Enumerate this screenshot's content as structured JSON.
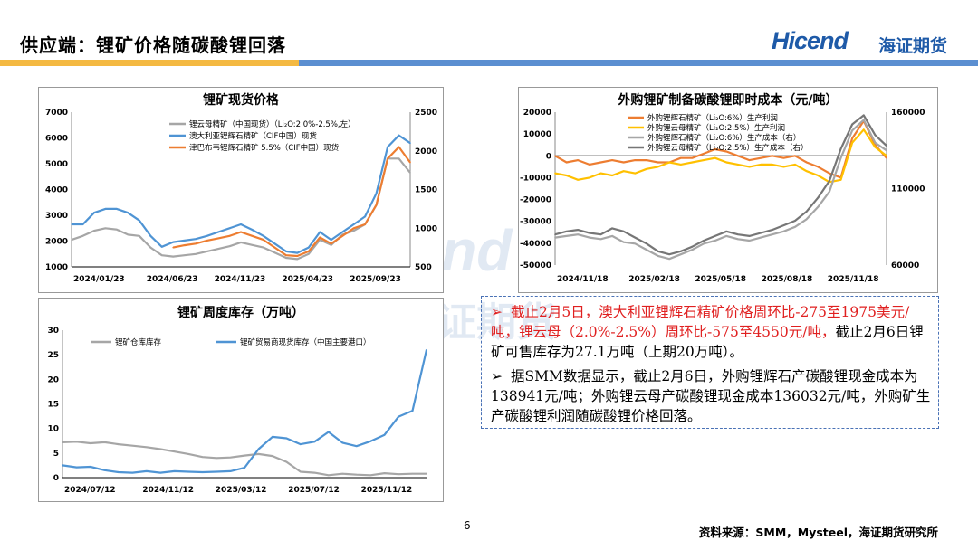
{
  "header": {
    "title": "供应端：锂矿价格随碳酸锂回落",
    "logo_en": "Hicend",
    "logo_cn": "海证期货"
  },
  "colors": {
    "gray_line": "#a6a6a6",
    "blue_line": "#4f94d4",
    "orange_line": "#ed7d31",
    "yellow_line": "#ffc000",
    "dark_gray_line": "#767676",
    "accent_red": "#e02020",
    "brand_blue": "#1e5aa8"
  },
  "chart_data": [
    {
      "type": "line",
      "title": "锂矿现货价格",
      "x_ticks": [
        "2024/01/23",
        "2024/06/23",
        "2024/11/23",
        "2025/04/23",
        "2025/09/23"
      ],
      "left_axis": {
        "ylim": [
          1000,
          7000
        ],
        "ticks": [
          "7000",
          "6000",
          "5000",
          "4000",
          "3000",
          "2000",
          "1000"
        ]
      },
      "right_axis": {
        "ylim": [
          500,
          2500
        ],
        "ticks": [
          "2500",
          "2000",
          "1500",
          "1000",
          "500"
        ]
      },
      "series": [
        {
          "name": "锂云母精矿（中国现货）（Li₂O:2.0%-2.5%,左）",
          "axis": "left",
          "color": "#a6a6a6",
          "values": [
            2050,
            2200,
            2400,
            2500,
            2450,
            2250,
            2200,
            1750,
            1450,
            1400,
            1450,
            1500,
            1600,
            1700,
            1800,
            1950,
            1850,
            1750,
            1550,
            1350,
            1300,
            1500,
            2050,
            1850,
            2250,
            2400,
            2650,
            3400,
            5200,
            5200,
            4650
          ]
        },
        {
          "name": "澳大利亚锂辉石精矿（CIF中国）现货",
          "axis": "right",
          "color": "#4f94d4",
          "values": [
            1050,
            1050,
            1200,
            1250,
            1250,
            1200,
            1100,
            900,
            760,
            820,
            840,
            860,
            900,
            950,
            1000,
            1050,
            980,
            900,
            800,
            700,
            680,
            750,
            950,
            850,
            950,
            1050,
            1150,
            1450,
            2050,
            2200,
            2100
          ]
        },
        {
          "name": "津巴布韦锂辉石精矿 5.5%（CIF中国）现货",
          "axis": "right",
          "color": "#ed7d31",
          "values": [
            null,
            null,
            null,
            null,
            null,
            null,
            null,
            null,
            null,
            750,
            780,
            800,
            840,
            870,
            900,
            950,
            900,
            850,
            750,
            650,
            640,
            700,
            880,
            800,
            900,
            1000,
            1050,
            1300,
            1900,
            2050,
            1850
          ]
        }
      ]
    },
    {
      "type": "line",
      "title": "外购锂矿制备碳酸锂即时成本（元/吨）",
      "x_ticks": [
        "2024/11/18",
        "2025/02/18",
        "2025/05/18",
        "2025/08/18",
        "2025/11/18"
      ],
      "left_axis": {
        "ylim": [
          -50000,
          20000
        ],
        "ticks": [
          "20000",
          "10000",
          "0",
          "-10000",
          "-20000",
          "-30000",
          "-40000",
          "-50000"
        ]
      },
      "right_axis": {
        "ylim": [
          60000,
          160000
        ],
        "ticks": [
          "160000",
          "110000",
          "60000"
        ]
      },
      "series": [
        {
          "name": "外购锂辉石精矿（Li₂O:6%）生产利润",
          "axis": "left",
          "color": "#ed7d31",
          "values": [
            0,
            -3000,
            -2000,
            -4000,
            -3000,
            -2000,
            -3000,
            -2000,
            -2000,
            -3000,
            -3000,
            -1000,
            -1000,
            1000,
            3000,
            2000,
            0,
            -2000,
            -1000,
            0,
            -1000,
            0,
            -3000,
            -5000,
            -8000,
            -10000,
            8000,
            16000,
            5000,
            -1000
          ]
        },
        {
          "name": "外购锂云母精矿（Li₂O:2.5%）生产利润",
          "axis": "left",
          "color": "#ffc000",
          "values": [
            -8000,
            -9000,
            -11000,
            -10000,
            -8000,
            -9000,
            -7000,
            -8000,
            -6000,
            -5000,
            -3000,
            -4000,
            -3000,
            -2000,
            -1000,
            -3000,
            -4000,
            -5000,
            -4000,
            -4000,
            -5000,
            -4000,
            -7000,
            -9000,
            -12000,
            -11000,
            6000,
            12000,
            4000,
            0
          ]
        },
        {
          "name": "外购锂辉石精矿（Li₂O:6%）生产成本（右）",
          "axis": "right",
          "color": "#a6a6a6",
          "values": [
            78000,
            79000,
            80000,
            78000,
            77000,
            79000,
            75000,
            74000,
            70000,
            66000,
            64000,
            67000,
            70000,
            74000,
            76000,
            79000,
            77000,
            76000,
            78000,
            80000,
            82000,
            85000,
            90000,
            98000,
            108000,
            130000,
            148000,
            155000,
            140000,
            135000
          ]
        },
        {
          "name": "外购锂云母精矿（Li₂O:2.5%）生产成本（右）",
          "axis": "right",
          "color": "#767676",
          "values": [
            80000,
            82000,
            83000,
            81000,
            80000,
            84000,
            82000,
            78000,
            74000,
            69000,
            67000,
            69000,
            72000,
            76000,
            79000,
            82000,
            80000,
            79000,
            81000,
            83000,
            86000,
            89000,
            95000,
            104000,
            115000,
            136000,
            152000,
            158000,
            145000,
            138000
          ]
        }
      ]
    },
    {
      "type": "line",
      "title": "锂矿周度库存（万吨）",
      "x_ticks": [
        "2024/07/12",
        "2024/11/12",
        "2025/03/12",
        "2025/07/12",
        "2025/11/12"
      ],
      "ylim": [
        0,
        30
      ],
      "ticks": [
        "30",
        "25",
        "20",
        "15",
        "10",
        "5",
        "0"
      ],
      "series": [
        {
          "name": "锂矿仓库库存",
          "color": "#a6a6a6",
          "values": [
            7.2,
            7.3,
            7.0,
            7.2,
            6.8,
            6.5,
            6.2,
            5.8,
            5.3,
            4.8,
            4.2,
            4.0,
            4.1,
            4.5,
            4.8,
            4.4,
            3.2,
            1.2,
            1.0,
            0.5,
            0.8,
            0.6,
            0.5,
            0.9,
            0.7,
            0.8,
            0.8
          ]
        },
        {
          "name": "锂矿贸易商现货库存（中国主要港口）",
          "color": "#4f94d4",
          "values": [
            2.5,
            2.1,
            2.2,
            1.5,
            1.1,
            1.0,
            1.3,
            1.0,
            1.3,
            1.2,
            1.1,
            1.2,
            1.3,
            2.0,
            5.8,
            8.3,
            8.0,
            6.8,
            7.3,
            9.3,
            7.1,
            6.4,
            7.4,
            8.7,
            12.4,
            13.6,
            26.0
          ]
        }
      ]
    }
  ],
  "bullets": [
    {
      "part1": "截止2月5日，澳大利亚锂辉石精矿价格周环比-275至1975美元/吨，锂云母（2.0%-2.5%）周环比-575至4550元/吨，",
      "part2": "截止2月6日锂矿可售库存为27.1万吨（上期20万吨）。"
    },
    {
      "text": "据SMM数据显示，截止2月6日，外购锂辉石产碳酸锂现金成本为138941元/吨；外购锂云母产碳酸锂现金成本136032元/吨，外购矿生产碳酸锂利润随碳酸锂价格回落。"
    }
  ],
  "footer": {
    "page": "6",
    "source": "资料来源：SMM，Mysteel，海证期货研究所"
  }
}
